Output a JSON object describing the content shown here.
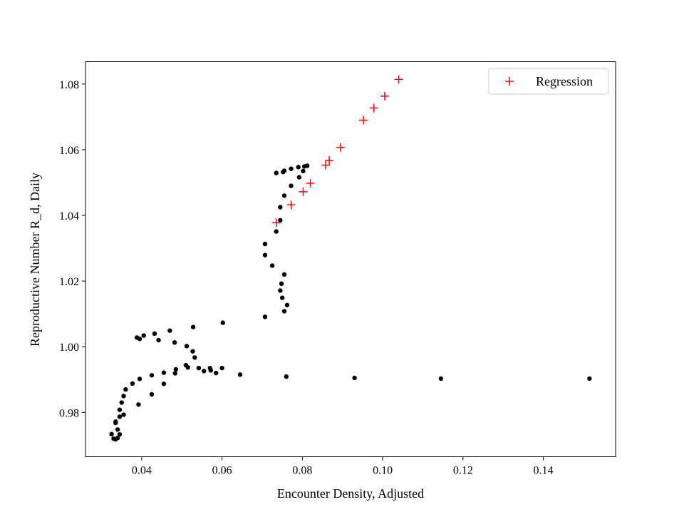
{
  "chart_data": {
    "type": "scatter",
    "title": "",
    "xlabel": "Encounter Density, Adjusted",
    "ylabel": "Reproductive Number R_d, Daily",
    "xlim": [
      0.026,
      0.158
    ],
    "ylim": [
      0.9665,
      1.0868
    ],
    "xticks": [
      0.04,
      0.06,
      0.08,
      0.1,
      0.12,
      0.14
    ],
    "xtick_labels": [
      "0.04",
      "0.06",
      "0.08",
      "0.10",
      "0.12",
      "0.14"
    ],
    "yticks": [
      0.98,
      1.0,
      1.02,
      1.04,
      1.06,
      1.08
    ],
    "ytick_labels": [
      "0.98",
      "1.00",
      "1.02",
      "1.04",
      "1.06",
      "1.08"
    ],
    "grid": false,
    "legend": {
      "position": "top-right",
      "entries": [
        "Regression"
      ]
    },
    "series": [
      {
        "name": "observed",
        "marker": "dot",
        "color": "#000000",
        "points": [
          [
            0.0325,
            0.9734
          ],
          [
            0.033,
            0.972
          ],
          [
            0.0335,
            0.9718
          ],
          [
            0.034,
            0.9722
          ],
          [
            0.0345,
            0.9733
          ],
          [
            0.034,
            0.9748
          ],
          [
            0.0335,
            0.9768
          ],
          [
            0.0335,
            0.9772
          ],
          [
            0.0345,
            0.9787
          ],
          [
            0.0355,
            0.9793
          ],
          [
            0.0345,
            0.9808
          ],
          [
            0.035,
            0.983
          ],
          [
            0.0355,
            0.985
          ],
          [
            0.036,
            0.987
          ],
          [
            0.0377,
            0.9888
          ],
          [
            0.0395,
            0.9902
          ],
          [
            0.0392,
            0.9824
          ],
          [
            0.0425,
            0.9855
          ],
          [
            0.0425,
            0.9913
          ],
          [
            0.0455,
            0.9887
          ],
          [
            0.0455,
            0.9921
          ],
          [
            0.0483,
            0.9919
          ],
          [
            0.0485,
            0.9931
          ],
          [
            0.051,
            0.9944
          ],
          [
            0.0515,
            0.9937
          ],
          [
            0.0542,
            0.9935
          ],
          [
            0.0555,
            0.9926
          ],
          [
            0.057,
            0.9935
          ],
          [
            0.0572,
            0.9928
          ],
          [
            0.0585,
            0.992
          ],
          [
            0.06,
            0.9935
          ],
          [
            0.0645,
            0.9915
          ],
          [
            0.076,
            0.9909
          ],
          [
            0.093,
            0.9905
          ],
          [
            0.1145,
            0.9903
          ],
          [
            0.1515,
            0.9903
          ],
          [
            0.0532,
            0.9967
          ],
          [
            0.0527,
            0.9986
          ],
          [
            0.0512,
            1.0002
          ],
          [
            0.0482,
            1.0013
          ],
          [
            0.0442,
            1.002
          ],
          [
            0.0395,
            1.0024
          ],
          [
            0.0388,
            1.0028
          ],
          [
            0.0405,
            1.0034
          ],
          [
            0.0432,
            1.004
          ],
          [
            0.047,
            1.0049
          ],
          [
            0.0528,
            1.006
          ],
          [
            0.0602,
            1.0073
          ],
          [
            0.0707,
            1.0091
          ],
          [
            0.0755,
            1.0108
          ],
          [
            0.0762,
            1.0127
          ],
          [
            0.075,
            1.0149
          ],
          [
            0.0745,
            1.0171
          ],
          [
            0.0748,
            1.0192
          ],
          [
            0.0755,
            1.022
          ],
          [
            0.0725,
            1.0247
          ],
          [
            0.0707,
            1.0279
          ],
          [
            0.0707,
            1.0313
          ],
          [
            0.0735,
            1.0351
          ],
          [
            0.0745,
            1.0385
          ],
          [
            0.0745,
            1.0425
          ],
          [
            0.0755,
            1.046
          ],
          [
            0.0772,
            1.049
          ],
          [
            0.0792,
            1.0516
          ],
          [
            0.0735,
            1.0529
          ],
          [
            0.0752,
            1.0532
          ],
          [
            0.0755,
            1.0536
          ],
          [
            0.0772,
            1.0542
          ],
          [
            0.079,
            1.0547
          ],
          [
            0.0802,
            1.0535
          ],
          [
            0.0805,
            1.0549
          ],
          [
            0.0812,
            1.0551
          ]
        ]
      },
      {
        "name": "Regression",
        "marker": "plus",
        "color": "#ff0000",
        "points": [
          [
            0.0735,
            1.0378
          ],
          [
            0.0772,
            1.0432
          ],
          [
            0.0802,
            1.0472
          ],
          [
            0.082,
            1.0498
          ],
          [
            0.0858,
            1.0553
          ],
          [
            0.0867,
            1.0567
          ],
          [
            0.0895,
            1.0607
          ],
          [
            0.0952,
            1.069
          ],
          [
            0.0978,
            1.0727
          ],
          [
            0.1005,
            1.0763
          ],
          [
            0.104,
            1.0814
          ]
        ]
      }
    ]
  }
}
